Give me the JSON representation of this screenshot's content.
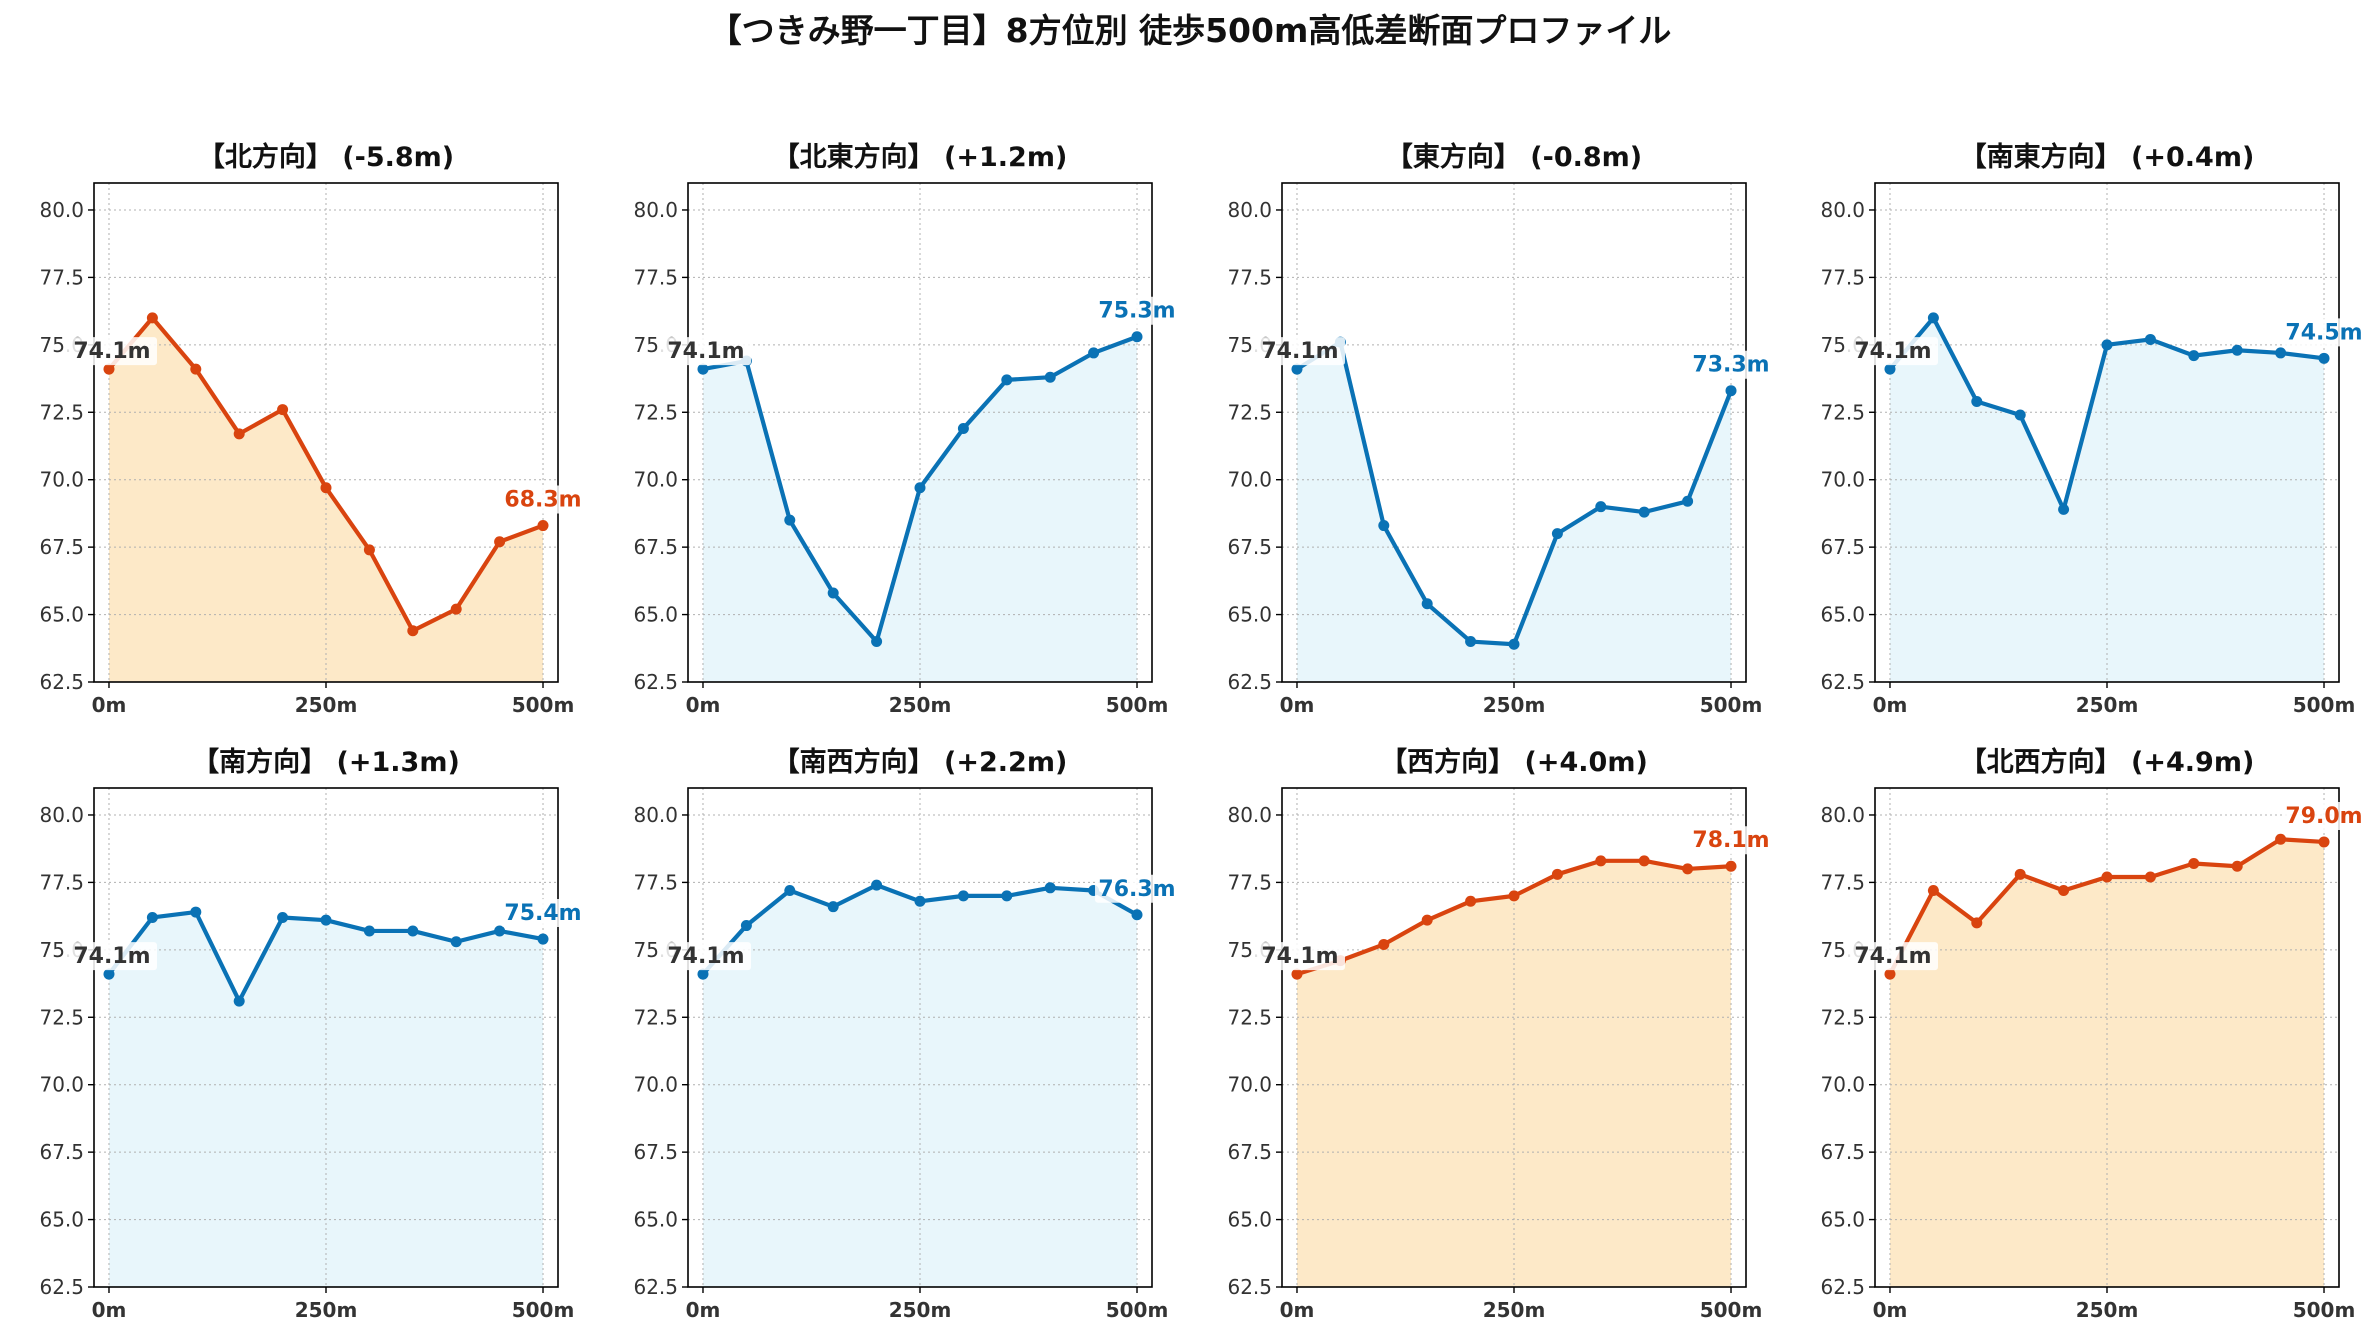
{
  "figure": {
    "title": "【つきみ野一丁目】8方位別 徒歩500m高低差断面プロファイル",
    "colors": {
      "down": "#d9440f",
      "down_fill": "#fde9c8",
      "up": "#0a72b5",
      "up_fill": "#e8f6fb",
      "grid": "#b0b0b0",
      "start_label": "#333333"
    }
  },
  "chart_data": [
    {
      "type": "line",
      "title": "【北方向】 (-5.8m)",
      "trend": "down",
      "x": [
        0,
        50,
        100,
        150,
        200,
        250,
        300,
        350,
        400,
        450,
        500
      ],
      "y": [
        74.1,
        76.0,
        74.1,
        71.7,
        72.6,
        69.7,
        67.4,
        64.4,
        65.2,
        67.7,
        68.3
      ],
      "start_label": "74.1m",
      "end_label": "68.3m",
      "xticks": [
        "0m",
        "250m",
        "500m"
      ],
      "yticks": [
        "62.5",
        "65.0",
        "67.5",
        "70.0",
        "72.5",
        "75.0",
        "77.5",
        "80.0"
      ],
      "xlim": [
        0,
        500
      ],
      "ylim": [
        62.5,
        81.0
      ],
      "grid": true
    },
    {
      "type": "line",
      "title": "【北東方向】 (+1.2m)",
      "trend": "up",
      "x": [
        0,
        50,
        100,
        150,
        200,
        250,
        300,
        350,
        400,
        450,
        500
      ],
      "y": [
        74.1,
        74.4,
        68.5,
        65.8,
        64.0,
        69.7,
        71.9,
        73.7,
        73.8,
        74.7,
        75.3
      ],
      "start_label": "74.1m",
      "end_label": "75.3m",
      "xticks": [
        "0m",
        "250m",
        "500m"
      ],
      "yticks": [
        "62.5",
        "65.0",
        "67.5",
        "70.0",
        "72.5",
        "75.0",
        "77.5",
        "80.0"
      ],
      "xlim": [
        0,
        500
      ],
      "ylim": [
        62.5,
        81.0
      ],
      "grid": true
    },
    {
      "type": "line",
      "title": "【東方向】 (-0.8m)",
      "trend": "up",
      "x": [
        0,
        50,
        100,
        150,
        200,
        250,
        300,
        350,
        400,
        450,
        500
      ],
      "y": [
        74.1,
        75.1,
        68.3,
        65.4,
        64.0,
        63.9,
        68.0,
        69.0,
        68.8,
        69.2,
        73.3
      ],
      "start_label": "74.1m",
      "end_label": "73.3m",
      "xticks": [
        "0m",
        "250m",
        "500m"
      ],
      "yticks": [
        "62.5",
        "65.0",
        "67.5",
        "70.0",
        "72.5",
        "75.0",
        "77.5",
        "80.0"
      ],
      "xlim": [
        0,
        500
      ],
      "ylim": [
        62.5,
        81.0
      ],
      "grid": true
    },
    {
      "type": "line",
      "title": "【南東方向】 (+0.4m)",
      "trend": "up",
      "x": [
        0,
        50,
        100,
        150,
        200,
        250,
        300,
        350,
        400,
        450,
        500
      ],
      "y": [
        74.1,
        76.0,
        72.9,
        72.4,
        68.9,
        75.0,
        75.2,
        74.6,
        74.8,
        74.7,
        74.5
      ],
      "start_label": "74.1m",
      "end_label": "74.5m",
      "xticks": [
        "0m",
        "250m",
        "500m"
      ],
      "yticks": [
        "62.5",
        "65.0",
        "67.5",
        "70.0",
        "72.5",
        "75.0",
        "77.5",
        "80.0"
      ],
      "xlim": [
        0,
        500
      ],
      "ylim": [
        62.5,
        81.0
      ],
      "grid": true
    },
    {
      "type": "line",
      "title": "【南方向】 (+1.3m)",
      "trend": "up",
      "x": [
        0,
        50,
        100,
        150,
        200,
        250,
        300,
        350,
        400,
        450,
        500
      ],
      "y": [
        74.1,
        76.2,
        76.4,
        73.1,
        76.2,
        76.1,
        75.7,
        75.7,
        75.3,
        75.7,
        75.4
      ],
      "start_label": "74.1m",
      "end_label": "75.4m",
      "xticks": [
        "0m",
        "250m",
        "500m"
      ],
      "yticks": [
        "62.5",
        "65.0",
        "67.5",
        "70.0",
        "72.5",
        "75.0",
        "77.5",
        "80.0"
      ],
      "xlim": [
        0,
        500
      ],
      "ylim": [
        62.5,
        81.0
      ],
      "grid": true
    },
    {
      "type": "line",
      "title": "【南西方向】 (+2.2m)",
      "trend": "up",
      "x": [
        0,
        50,
        100,
        150,
        200,
        250,
        300,
        350,
        400,
        450,
        500
      ],
      "y": [
        74.1,
        75.9,
        77.2,
        76.6,
        77.4,
        76.8,
        77.0,
        77.0,
        77.3,
        77.2,
        76.3
      ],
      "start_label": "74.1m",
      "end_label": "76.3m",
      "xticks": [
        "0m",
        "250m",
        "500m"
      ],
      "yticks": [
        "62.5",
        "65.0",
        "67.5",
        "70.0",
        "72.5",
        "75.0",
        "77.5",
        "80.0"
      ],
      "xlim": [
        0,
        500
      ],
      "ylim": [
        62.5,
        81.0
      ],
      "grid": true
    },
    {
      "type": "line",
      "title": "【西方向】 (+4.0m)",
      "trend": "down",
      "x": [
        0,
        50,
        100,
        150,
        200,
        250,
        300,
        350,
        400,
        450,
        500
      ],
      "y": [
        74.1,
        74.6,
        75.2,
        76.1,
        76.8,
        77.0,
        77.8,
        78.3,
        78.3,
        78.0,
        78.1
      ],
      "start_label": "74.1m",
      "end_label": "78.1m",
      "xticks": [
        "0m",
        "250m",
        "500m"
      ],
      "yticks": [
        "62.5",
        "65.0",
        "67.5",
        "70.0",
        "72.5",
        "75.0",
        "77.5",
        "80.0"
      ],
      "xlim": [
        0,
        500
      ],
      "ylim": [
        62.5,
        81.0
      ],
      "grid": true
    },
    {
      "type": "line",
      "title": "【北西方向】 (+4.9m)",
      "trend": "down",
      "x": [
        0,
        50,
        100,
        150,
        200,
        250,
        300,
        350,
        400,
        450,
        500
      ],
      "y": [
        74.1,
        77.2,
        76.0,
        77.8,
        77.2,
        77.7,
        77.7,
        78.2,
        78.1,
        79.1,
        79.0
      ],
      "start_label": "74.1m",
      "end_label": "79.0m",
      "xticks": [
        "0m",
        "250m",
        "500m"
      ],
      "yticks": [
        "62.5",
        "65.0",
        "67.5",
        "70.0",
        "72.5",
        "75.0",
        "77.5",
        "80.0"
      ],
      "xlim": [
        0,
        500
      ],
      "ylim": [
        62.5,
        81.0
      ],
      "grid": true
    }
  ]
}
